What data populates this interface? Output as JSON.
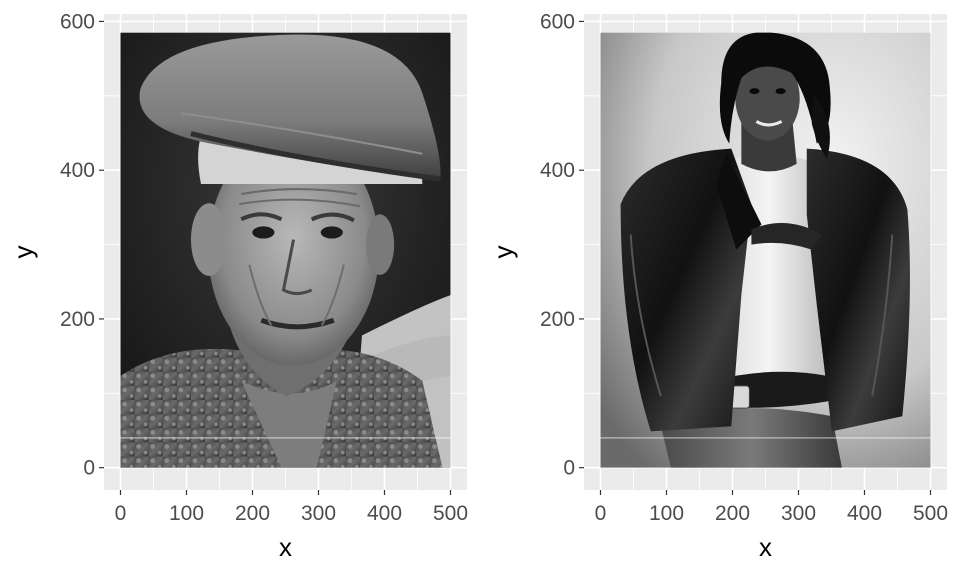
{
  "chart_data": [
    {
      "type": "image",
      "xlabel": "x",
      "ylabel": "y",
      "xlim": [
        -25,
        525
      ],
      "ylim": [
        -30,
        610
      ],
      "x_ticks": [
        0,
        100,
        200,
        300,
        400,
        500
      ],
      "y_ticks": [
        0,
        200,
        400,
        600
      ],
      "grid": true,
      "image_extent": {
        "x": [
          0,
          500
        ],
        "y": [
          0,
          585
        ]
      },
      "image_content": "grayscale-portrait-man-with-flat-cap",
      "colors": {
        "panel": "#ebebeb",
        "grid": "#ffffff",
        "tick_text": "#4d4d4d",
        "title_text": "#000000"
      }
    },
    {
      "type": "image",
      "xlabel": "x",
      "ylabel": "y",
      "xlim": [
        -25,
        525
      ],
      "ylim": [
        -30,
        610
      ],
      "x_ticks": [
        0,
        100,
        200,
        300,
        400,
        500
      ],
      "y_ticks": [
        0,
        200,
        400,
        600
      ],
      "grid": true,
      "image_extent": {
        "x": [
          0,
          500
        ],
        "y": [
          0,
          585
        ]
      },
      "image_content": "grayscale-portrait-man-in-leather-jacket",
      "colors": {
        "panel": "#ebebeb",
        "grid": "#ffffff",
        "tick_text": "#4d4d4d",
        "title_text": "#000000"
      }
    }
  ]
}
